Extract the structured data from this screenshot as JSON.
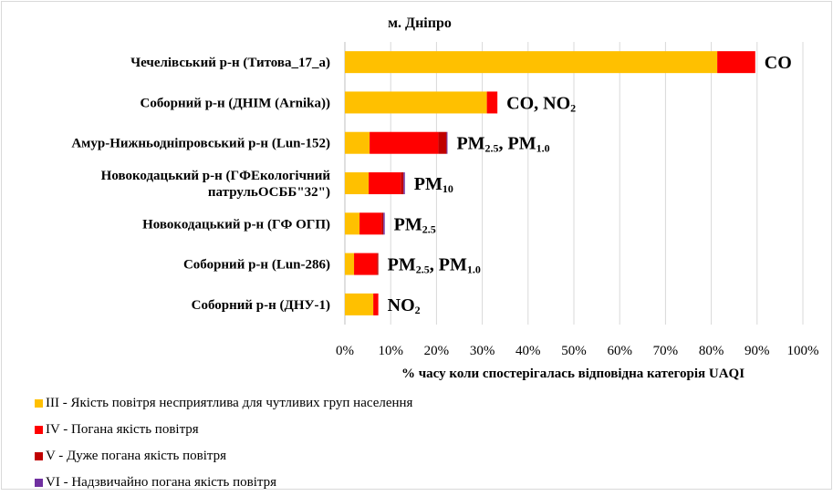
{
  "chart_data": {
    "type": "bar",
    "orientation": "horizontal",
    "stacked": true,
    "title": "м. Дніпро",
    "xlabel": "% часу коли спостерігалась відповідна категорія UAQI",
    "ylabel": "",
    "xlim": [
      0,
      100
    ],
    "x_ticks": [
      "0%",
      "10%",
      "20%",
      "30%",
      "40%",
      "50%",
      "60%",
      "70%",
      "80%",
      "90%",
      "100%"
    ],
    "grid": "vertical",
    "legend_position": "bottom-left",
    "categories": [
      [
        "Чечелівський р-н (Титова_17_а)"
      ],
      [
        "Соборний р-н (ДНІМ (Arnika))"
      ],
      [
        "Амур-Нижньодніпровський р-н (Lun-152)"
      ],
      [
        "Новокодацький р-н (ГФЕкологічний",
        "патрульОСББ\"32\")"
      ],
      [
        "Новокодацький р-н (ГФ ОГП)"
      ],
      [
        "Соборний р-н (Lun-286)"
      ],
      [
        "Соборний р-н (ДНУ-1)"
      ]
    ],
    "annotations": [
      [
        {
          "t": "CO"
        }
      ],
      [
        {
          "t": "CO, NO"
        },
        {
          "t": "2",
          "sub": true
        }
      ],
      [
        {
          "t": "PM"
        },
        {
          "t": "2.5",
          "sub": true
        },
        {
          "t": ", PM"
        },
        {
          "t": "1.0",
          "sub": true
        }
      ],
      [
        {
          "t": "PM"
        },
        {
          "t": "10",
          "sub": true
        }
      ],
      [
        {
          "t": "PM"
        },
        {
          "t": "2.5",
          "sub": true
        }
      ],
      [
        {
          "t": "PM"
        },
        {
          "t": "2.5",
          "sub": true
        },
        {
          "t": ", PM"
        },
        {
          "t": "1.0",
          "sub": true
        }
      ],
      [
        {
          "t": "NO"
        },
        {
          "t": "2",
          "sub": true
        }
      ]
    ],
    "series": [
      {
        "name": "III - Якість повітря несприятлива для чутливих груп населення",
        "color": "#FFC000",
        "values": [
          81.3,
          31.0,
          5.4,
          5.2,
          3.2,
          2.0,
          6.2
        ]
      },
      {
        "name": "IV - Погана якість повітря",
        "color": "#FF0000",
        "values": [
          8.3,
          2.3,
          15.0,
          7.0,
          4.8,
          5.0,
          1.1
        ]
      },
      {
        "name": "V - Дуже погана якість повітря",
        "color": "#C00000",
        "values": [
          0,
          0,
          1.8,
          0.6,
          0.4,
          0.3,
          0
        ]
      },
      {
        "name": "VI - Надзвичайно погана якість повітря",
        "color": "#7030A0",
        "values": [
          0,
          0,
          0.2,
          0.3,
          0.3,
          0,
          0
        ]
      }
    ]
  }
}
